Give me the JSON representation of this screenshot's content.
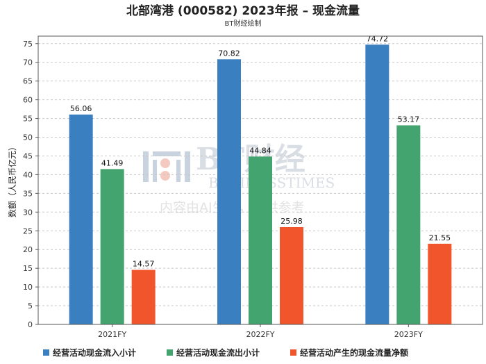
{
  "title": "北部湾港 (000582) 2023年报 – 现金流量",
  "subtitle": "BT财经绘制",
  "watermark": {
    "brand": "BT财经",
    "brand_en": "BUSINESSTIMES",
    "note": "内容由AI生成，仅供参考"
  },
  "colors": {
    "inflow": "#3a7fbf",
    "outflow": "#44a46f",
    "net": "#f0552b"
  },
  "chart_data": {
    "type": "bar",
    "categories": [
      "2021FY",
      "2022FY",
      "2023FY"
    ],
    "series": [
      {
        "name": "经营活动现金流入小计",
        "values": [
          56.06,
          70.82,
          74.72
        ]
      },
      {
        "name": "经营活动现金流出小计",
        "values": [
          41.49,
          44.84,
          53.17
        ]
      },
      {
        "name": "经营活动产生的现金流量净额",
        "values": [
          14.57,
          25.98,
          21.55
        ]
      }
    ],
    "ylabel": "数额（人民币亿元）",
    "ylim": [
      0,
      77
    ],
    "yticks": [
      0,
      5,
      10,
      15,
      20,
      25,
      30,
      35,
      40,
      45,
      50,
      55,
      60,
      65,
      70,
      75
    ],
    "grid": true,
    "legend_position": "bottom"
  }
}
